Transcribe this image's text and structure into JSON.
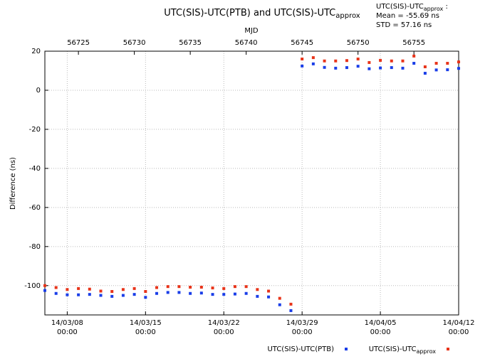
{
  "chart_data": {
    "type": "scatter",
    "title": "UTC(SIS)-UTC(PTB) and UTC(SIS)-UTC",
    "title_sub": "approx",
    "x2label": "MJD",
    "ylabel": "Difference (ns)",
    "stats": {
      "label": "UTC(SIS)-UTC",
      "sub": "approx",
      "suffix": " :",
      "lines": [
        "Mean =  -55.69 ns",
        "STD =  57.16 ns"
      ]
    },
    "xlim": [
      56722,
      56759
    ],
    "xticks": [
      {
        "value": 56724,
        "label": "14/03/08\n00:00"
      },
      {
        "value": 56731,
        "label": "14/03/15\n00:00"
      },
      {
        "value": 56738,
        "label": "14/03/22\n00:00"
      },
      {
        "value": 56745,
        "label": "14/03/29\n00:00"
      },
      {
        "value": 56752,
        "label": "14/04/05\n00:00"
      },
      {
        "value": 56759,
        "label": "14/04/12\n00:00"
      }
    ],
    "x2ticks": [
      56725,
      56730,
      56735,
      56740,
      56745,
      56750,
      56755
    ],
    "ylim": [
      -115,
      20
    ],
    "yticks": [
      20,
      0,
      -20,
      -40,
      -60,
      -80,
      -100
    ],
    "grid": true,
    "x": [
      56722,
      56723,
      56724,
      56725,
      56726,
      56727,
      56728,
      56729,
      56730,
      56731,
      56732,
      56733,
      56734,
      56735,
      56736,
      56737,
      56738,
      56739,
      56740,
      56741,
      56742,
      56743,
      56744,
      56745,
      56746,
      56747,
      56748,
      56749,
      56750,
      56751,
      56752,
      56753,
      56754,
      56755,
      56756,
      56757,
      56758,
      56759
    ],
    "series": [
      {
        "name": "UTC(SIS)-UTC(PTB)",
        "color": "#1a3ee8",
        "values": [
          -102.5,
          -104,
          -104.7,
          -104.7,
          -104.5,
          -105,
          -105.5,
          -105,
          -104.5,
          -106,
          -104,
          -103.5,
          -103.5,
          -104,
          -103.8,
          -104.5,
          -104.5,
          -104.3,
          -104,
          -105.5,
          -105.8,
          -109.8,
          -112.8,
          12.4,
          13.5,
          11.7,
          11.3,
          11.6,
          12.3,
          11,
          11.4,
          11.6,
          11.3,
          13.8,
          8.7,
          10.4,
          10.5,
          11.2
        ]
      },
      {
        "name": "UTC(SIS)-UTC",
        "name_sub": "approx",
        "color": "#e8341a",
        "values": [
          -100,
          -101,
          -102,
          -101.5,
          -101.8,
          -102.8,
          -103,
          -102,
          -101.5,
          -103,
          -101,
          -100.5,
          -100.5,
          -100.8,
          -100.8,
          -101.2,
          -101.5,
          -100.5,
          -100.5,
          -102,
          -102.8,
          -106.5,
          -109.5,
          16,
          16.7,
          15,
          15,
          15.2,
          16,
          14.2,
          15.3,
          15,
          15,
          17.5,
          12,
          13.8,
          13.8,
          14.5
        ]
      }
    ]
  }
}
